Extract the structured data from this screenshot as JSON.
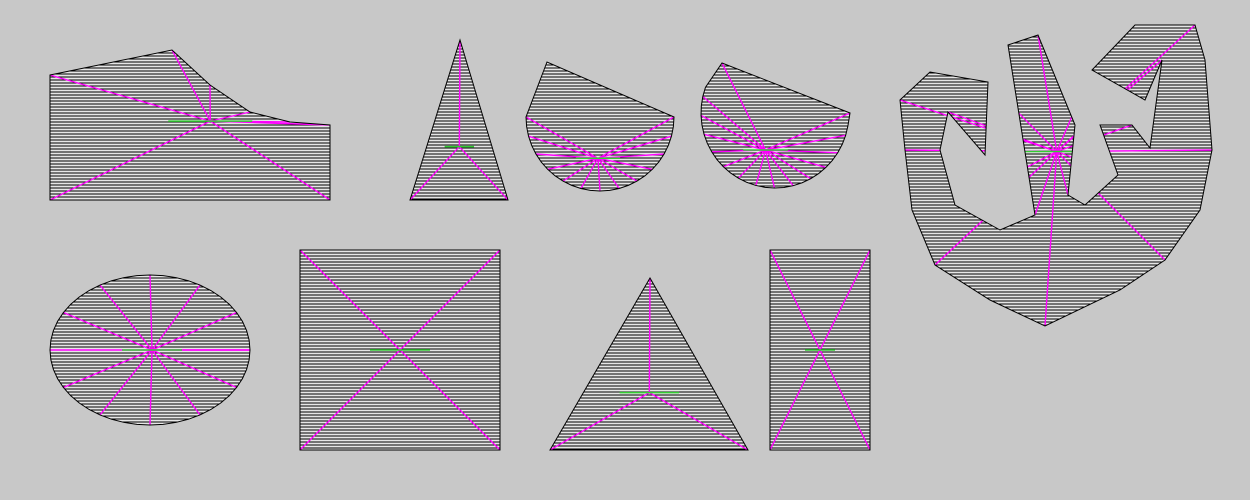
{
  "background": "#c8c8c8",
  "colors": {
    "hatch": "#000000",
    "skeleton": "#ff00ff",
    "medial": "#33cc33",
    "background": "#c8c8c8"
  },
  "shapes": [
    {
      "name": "terrain-shape-hatch",
      "kind": "polygon-hatched"
    },
    {
      "name": "tall-triangle-hatch",
      "kind": "polygon-hatched"
    },
    {
      "name": "half-disc-rotated-hatch",
      "kind": "polygon-hatched"
    },
    {
      "name": "half-disc-hatch",
      "kind": "polygon-hatched"
    },
    {
      "name": "spiral-shape-hatch",
      "kind": "polygon-hatched"
    },
    {
      "name": "ellipse-hatch",
      "kind": "polygon-hatched"
    },
    {
      "name": "square-hatch",
      "kind": "polygon-hatched"
    },
    {
      "name": "triangle-hatch",
      "kind": "polygon-hatched"
    },
    {
      "name": "rectangle-hatch",
      "kind": "polygon-hatched"
    }
  ]
}
